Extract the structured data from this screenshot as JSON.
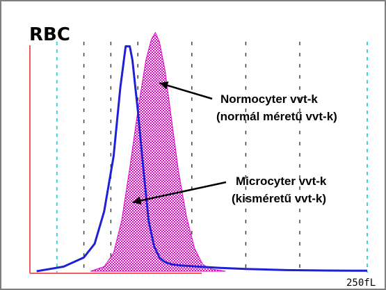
{
  "chart_data": {
    "type": "line",
    "title": "RBC",
    "xlabel": "",
    "ylabel": "",
    "xlim": [
      0,
      250
    ],
    "ylim": [
      0,
      100
    ],
    "grid": true,
    "x_tick_labels": [
      {
        "x": 250,
        "label": "250fL"
      }
    ],
    "series": [
      {
        "name": "",
        "color": "#1f1fd6",
        "style": "line",
        "x": [
          5,
          15,
          25,
          40,
          48,
          55,
          62,
          67,
          71,
          74,
          76,
          80,
          84,
          88,
          92,
          96,
          100,
          105,
          112,
          125,
          140,
          160,
          190,
          220,
          250
        ],
        "y": [
          0,
          1,
          2,
          6,
          12,
          26,
          50,
          80,
          98,
          98,
          92,
          70,
          45,
          22,
          11,
          6,
          4,
          3,
          2.5,
          2,
          1.5,
          1,
          0.5,
          0.3,
          0.2
        ]
      },
      {
        "name": "",
        "color": "#e000c8",
        "style": "hatched",
        "x": [
          45,
          55,
          62,
          68,
          74,
          80,
          86,
          90,
          93,
          96,
          100,
          105,
          110,
          116,
          122,
          128,
          134,
          145
        ],
        "y": [
          0,
          2,
          8,
          22,
          45,
          70,
          92,
          101,
          104,
          100,
          88,
          66,
          44,
          24,
          10,
          3,
          1,
          0
        ]
      }
    ],
    "annotations": [
      {
        "lines": [
          "Normocyter vvt-k",
          "(normál méretű vvt-k)"
        ],
        "arrow_to": {
          "x": 96,
          "y": 82
        }
      },
      {
        "lines": [
          "Microcyter vvt-k",
          "(kisméretű vvt-k)"
        ],
        "arrow_to": {
          "x": 76,
          "y": 30
        }
      }
    ]
  }
}
